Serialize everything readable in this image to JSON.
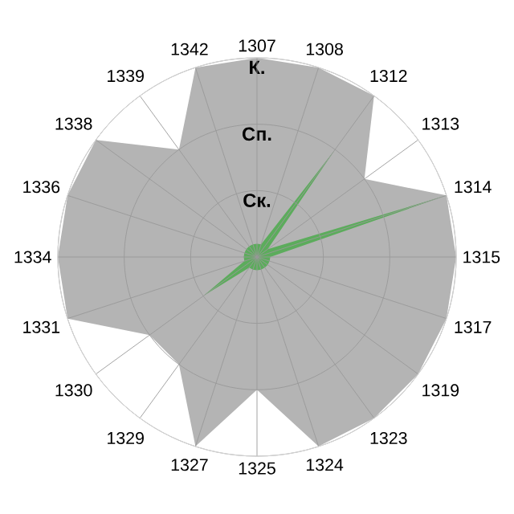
{
  "chart_data": {
    "type": "radar",
    "categories": [
      "1307",
      "1308",
      "1312",
      "1313",
      "1314",
      "1315",
      "1317",
      "1319",
      "1323",
      "1324",
      "1325",
      "1327",
      "1329",
      "1330",
      "1331",
      "1334",
      "1336",
      "1338",
      "1339",
      "1342"
    ],
    "series": [
      {
        "color": "#b4b4b4",
        "values": [
          3,
          3,
          3,
          2,
          3,
          3,
          3,
          3,
          3,
          3,
          2,
          3,
          2,
          2,
          3,
          3,
          3,
          3,
          2,
          3
        ]
      },
      {
        "color": "#5cac5c",
        "values": [
          0.2,
          0.2,
          2,
          0.2,
          3,
          0.2,
          0.2,
          0.2,
          0.2,
          0.2,
          0.2,
          0.2,
          0.2,
          1,
          0.2,
          0.2,
          0.2,
          0.2,
          0.2,
          0.2
        ]
      }
    ],
    "ylim": [
      0,
      3
    ],
    "yticks": [
      {
        "value": 1,
        "label": "Ск."
      },
      {
        "value": 2,
        "label": "Сп."
      },
      {
        "value": 3,
        "label": "К."
      }
    ],
    "grid": true
  }
}
